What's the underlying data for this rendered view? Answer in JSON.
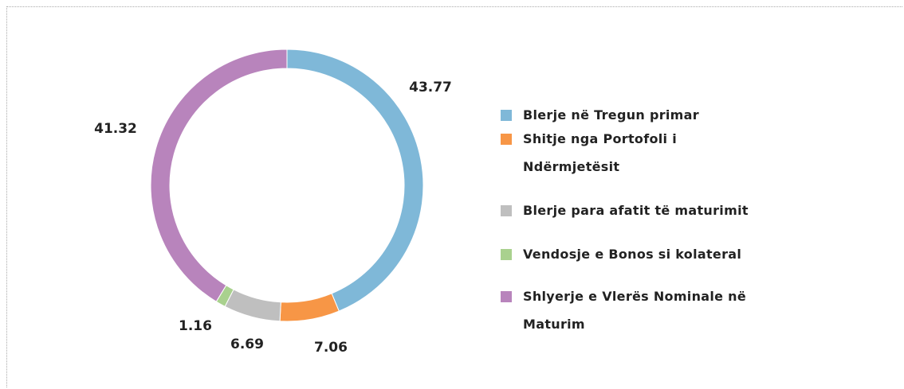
{
  "chart_data": {
    "type": "donut",
    "series": [
      {
        "name": "Blerje në Tregun primar",
        "color": "#7fb8d8",
        "values": [
          43.77
        ]
      },
      {
        "name": "Shitje nga Portofoli i Ndërmjetësit",
        "color": "#f79646",
        "values": [
          7.06
        ]
      },
      {
        "name": "Blerje para afatit të maturimit",
        "color": "#bfbfbf",
        "values": [
          6.69
        ]
      },
      {
        "name": "Vendosje e Bonos si kolateral",
        "color": "#a9d18e",
        "values": [
          1.16
        ]
      },
      {
        "name": "Shlyerje e Vlerës Nominale në Maturim",
        "color": "#b884bc",
        "values": [
          41.32
        ]
      }
    ],
    "legend": "right"
  }
}
